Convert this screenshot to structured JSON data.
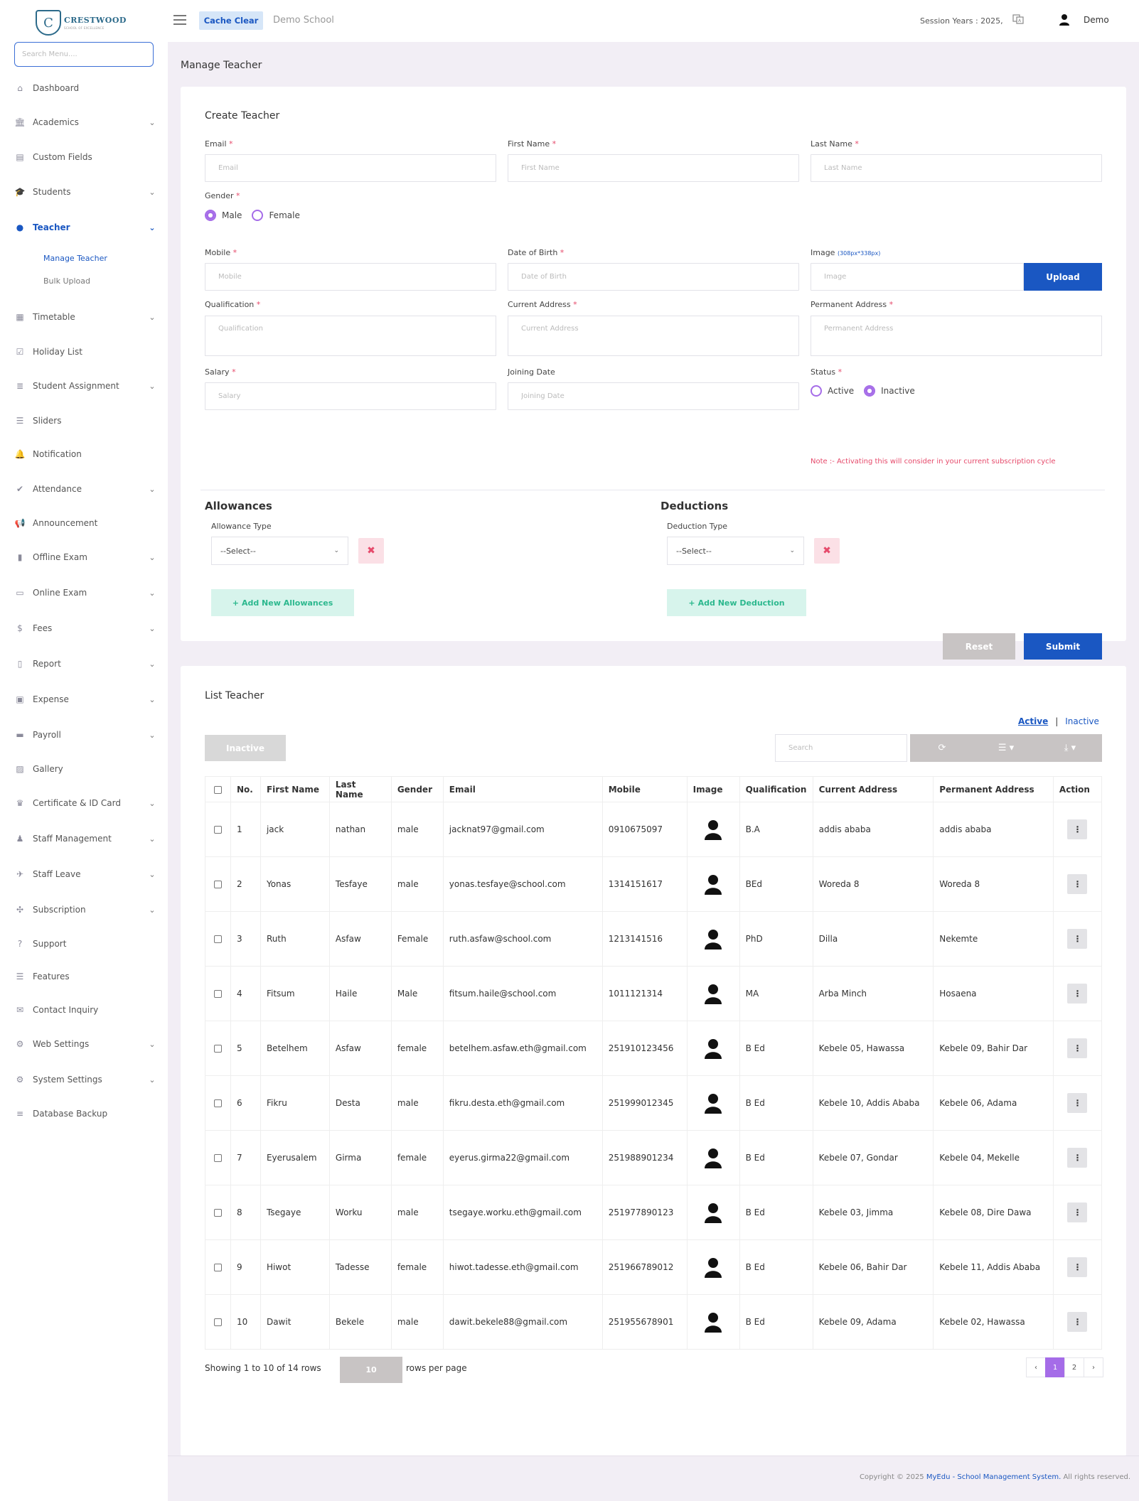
{
  "brand": {
    "logo_letter": "C",
    "name": "CRESTWOOD",
    "tagline": "SCHOOL OF EXCELLENCE"
  },
  "sidebar": {
    "search_placeholder": "Search Menu....",
    "items": [
      {
        "label": "Dashboard",
        "icon": "home-icon",
        "chevron": false
      },
      {
        "label": "Academics",
        "icon": "institution-icon",
        "chevron": true
      },
      {
        "label": "Custom Fields",
        "icon": "form-icon",
        "chevron": false
      },
      {
        "label": "Students",
        "icon": "graduation-cap-icon",
        "chevron": true
      },
      {
        "label": "Teacher",
        "icon": "user-icon",
        "chevron": true,
        "active": true
      },
      {
        "label": "Timetable",
        "icon": "calendar-icon",
        "chevron": true
      },
      {
        "label": "Holiday List",
        "icon": "calendar-check-icon",
        "chevron": false
      },
      {
        "label": "Student Assignment",
        "icon": "tasks-icon",
        "chevron": true
      },
      {
        "label": "Sliders",
        "icon": "list-icon",
        "chevron": false
      },
      {
        "label": "Notification",
        "icon": "bell-icon",
        "chevron": false
      },
      {
        "label": "Attendance",
        "icon": "check-icon",
        "chevron": true
      },
      {
        "label": "Announcement",
        "icon": "megaphone-icon",
        "chevron": false
      },
      {
        "label": "Offline Exam",
        "icon": "book-icon",
        "chevron": true
      },
      {
        "label": "Online Exam",
        "icon": "laptop-icon",
        "chevron": true
      },
      {
        "label": "Fees",
        "icon": "dollar-icon",
        "chevron": true
      },
      {
        "label": "Report",
        "icon": "file-icon",
        "chevron": true
      },
      {
        "label": "Expense",
        "icon": "money-icon",
        "chevron": true
      },
      {
        "label": "Payroll",
        "icon": "wallet-icon",
        "chevron": true
      },
      {
        "label": "Gallery",
        "icon": "image-icon",
        "chevron": false
      },
      {
        "label": "Certificate & ID Card",
        "icon": "trophy-icon",
        "chevron": true
      },
      {
        "label": "Staff Management",
        "icon": "lock-user-icon",
        "chevron": true
      },
      {
        "label": "Staff Leave",
        "icon": "plane-icon",
        "chevron": true
      },
      {
        "label": "Subscription",
        "icon": "puzzle-icon",
        "chevron": true
      },
      {
        "label": "Support",
        "icon": "question-icon",
        "chevron": false
      },
      {
        "label": "Features",
        "icon": "list-icon",
        "chevron": false
      },
      {
        "label": "Contact Inquiry",
        "icon": "envelope-icon",
        "chevron": false
      },
      {
        "label": "Web Settings",
        "icon": "cogs-icon",
        "chevron": true
      },
      {
        "label": "System Settings",
        "icon": "gear-icon",
        "chevron": true
      },
      {
        "label": "Database Backup",
        "icon": "database-icon",
        "chevron": false
      }
    ],
    "teacher_sub": [
      "Manage Teacher",
      "Bulk Upload"
    ]
  },
  "topbar": {
    "cache_clear": "Cache Clear",
    "school": "Demo School",
    "session": "Session Years : 2025,",
    "user": "Demo"
  },
  "page_title": "Manage Teacher",
  "create": {
    "title": "Create Teacher",
    "email_label": "Email",
    "email_ph": "Email",
    "first_name_label": "First Name",
    "first_name_ph": "First Name",
    "last_name_label": "Last Name",
    "last_name_ph": "Last Name",
    "gender_label": "Gender",
    "gender_male": "Male",
    "gender_female": "Female",
    "mobile_label": "Mobile",
    "mobile_ph": "Mobile",
    "dob_label": "Date of Birth",
    "dob_ph": "Date of Birth",
    "image_label": "Image",
    "image_hint": "(308px*338px)",
    "image_ph": "Image",
    "upload": "Upload",
    "qualification_label": "Qualification",
    "qualification_ph": "Qualification",
    "current_address_label": "Current Address",
    "current_address_ph": "Current Address",
    "permanent_address_label": "Permanent Address",
    "permanent_address_ph": "Permanent Address",
    "salary_label": "Salary",
    "salary_ph": "Salary",
    "joining_label": "Joining Date",
    "joining_ph": "Joining Date",
    "status_label": "Status",
    "status_active": "Active",
    "status_inactive": "Inactive",
    "note": "Note :- Activating this will consider in your current subscription cycle",
    "allowances_title": "Allowances",
    "allowance_type_label": "Allowance Type",
    "allowance_select": "--Select--",
    "add_allowance": "Add New Allowances",
    "deductions_title": "Deductions",
    "deduction_type_label": "Deduction Type",
    "deduction_select": "--Select--",
    "add_deduction": "Add New Deduction",
    "reset": "Reset",
    "submit": "Submit"
  },
  "list": {
    "title": "List Teacher",
    "filter_active": "Active",
    "filter_sep": "|",
    "filter_inactive": "Inactive",
    "inactive_btn": "Inactive",
    "search_ph": "Search",
    "columns": [
      "No.",
      "First Name",
      "Last Name",
      "Gender",
      "Email",
      "Mobile",
      "Image",
      "Qualification",
      "Current Address",
      "Permanent Address",
      "Action"
    ],
    "rows": [
      {
        "no": "1",
        "first": "jack",
        "last": "nathan",
        "gender": "male",
        "email": "jacknat97@gmail.com",
        "mobile": "0910675097",
        "qual": "B.A",
        "current": "addis ababa",
        "permanent": "addis ababa"
      },
      {
        "no": "2",
        "first": "Yonas",
        "last": "Tesfaye",
        "gender": "male",
        "email": "yonas.tesfaye@school.com",
        "mobile": "1314151617",
        "qual": "BEd",
        "current": "Woreda 8",
        "permanent": "Woreda 8"
      },
      {
        "no": "3",
        "first": "Ruth",
        "last": "Asfaw",
        "gender": "Female",
        "email": "ruth.asfaw@school.com",
        "mobile": "1213141516",
        "qual": "PhD",
        "current": "Dilla",
        "permanent": "Nekemte"
      },
      {
        "no": "4",
        "first": "Fitsum",
        "last": "Haile",
        "gender": "Male",
        "email": "fitsum.haile@school.com",
        "mobile": "1011121314",
        "qual": "MA",
        "current": "Arba Minch",
        "permanent": "Hosaena"
      },
      {
        "no": "5",
        "first": "Betelhem",
        "last": "Asfaw",
        "gender": "female",
        "email": "betelhem.asfaw.eth@gmail.com",
        "mobile": "251910123456",
        "qual": "B Ed",
        "current": "Kebele 05, Hawassa",
        "permanent": "Kebele 09, Bahir Dar"
      },
      {
        "no": "6",
        "first": "Fikru",
        "last": "Desta",
        "gender": "male",
        "email": "fikru.desta.eth@gmail.com",
        "mobile": "251999012345",
        "qual": "B Ed",
        "current": "Kebele 10, Addis Ababa",
        "permanent": "Kebele 06, Adama"
      },
      {
        "no": "7",
        "first": "Eyerusalem",
        "last": "Girma",
        "gender": "female",
        "email": "eyerus.girma22@gmail.com",
        "mobile": "251988901234",
        "qual": "B Ed",
        "current": "Kebele 07, Gondar",
        "permanent": "Kebele 04, Mekelle"
      },
      {
        "no": "8",
        "first": "Tsegaye",
        "last": "Worku",
        "gender": "male",
        "email": "tsegaye.worku.eth@gmail.com",
        "mobile": "251977890123",
        "qual": "B Ed",
        "current": "Kebele 03, Jimma",
        "permanent": "Kebele 08, Dire Dawa"
      },
      {
        "no": "9",
        "first": "Hiwot",
        "last": "Tadesse",
        "gender": "female",
        "email": "hiwot.tadesse.eth@gmail.com",
        "mobile": "251966789012",
        "qual": "B Ed",
        "current": "Kebele 06, Bahir Dar",
        "permanent": "Kebele 11, Addis Ababa"
      },
      {
        "no": "10",
        "first": "Dawit",
        "last": "Bekele",
        "gender": "male",
        "email": "dawit.bekele88@gmail.com",
        "mobile": "251955678901",
        "qual": "B Ed",
        "current": "Kebele 09, Adama",
        "permanent": "Kebele 02, Hawassa"
      }
    ],
    "showing": "Showing 1 to 10 of 14 rows",
    "page_size": "10",
    "rows_per_page": "rows per page",
    "pages": [
      "‹",
      "1",
      "2",
      "›"
    ],
    "current_page": "1"
  },
  "footer": {
    "prefix": "Copyright © 2025",
    "link": "MyEdu - School Management System.",
    "suffix": "All rights reserved."
  },
  "colors": {
    "primary": "#1a57c2",
    "accent": "#a56ce8",
    "danger": "#e64a6b",
    "success": "#2cb88e"
  }
}
